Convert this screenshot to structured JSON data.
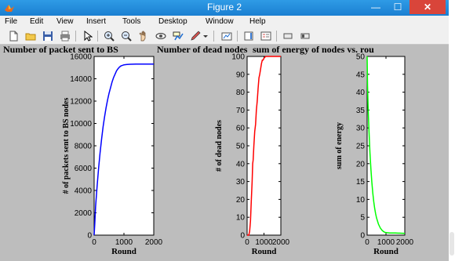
{
  "window": {
    "title": "Figure 2",
    "cropped_title_above": "energy",
    "minimize_glyph": "—",
    "maximize_glyph": "☐",
    "close_glyph": "✕"
  },
  "menu": [
    "File",
    "Edit",
    "View",
    "Insert",
    "Tools",
    "Desktop",
    "Window",
    "Help"
  ],
  "toolbar_icons": [
    "new-figure-icon",
    "open-file-icon",
    "save-icon",
    "print-icon",
    "pointer-icon",
    "zoom-in-icon",
    "zoom-out-icon",
    "pan-icon",
    "rotate-3d-icon",
    "data-cursor-icon",
    "brush-icon",
    "dropdown-arrow-icon",
    "link-plot-icon",
    "colorbar-icon",
    "legend-icon",
    "hide-plot-tools-icon",
    "show-plot-tools-icon"
  ],
  "colors": {
    "background": "#bdbdbd",
    "blue": "#0000ff",
    "red": "#ff0000",
    "green": "#00ff00"
  },
  "chart_data": [
    {
      "type": "line",
      "title": "Number of packet sent to BS",
      "xlabel": "Round",
      "ylabel": "# of packets sent to BS nodes",
      "xlim": [
        0,
        2000
      ],
      "ylim": [
        0,
        16000
      ],
      "xticks": [
        0,
        1000,
        2000
      ],
      "yticks": [
        0,
        2000,
        4000,
        6000,
        8000,
        10000,
        12000,
        14000,
        16000
      ],
      "grid": false,
      "color": "#0000ff",
      "x": [
        0,
        20,
        50,
        100,
        150,
        200,
        250,
        300,
        350,
        400,
        450,
        500,
        550,
        600,
        650,
        700,
        750,
        800,
        850,
        900,
        950,
        1000,
        1100,
        1200,
        1400,
        1600,
        1800,
        2000
      ],
      "y": [
        0,
        1000,
        2600,
        4400,
        6000,
        7400,
        8600,
        9700,
        10600,
        11400,
        12100,
        12700,
        13200,
        13700,
        14100,
        14400,
        14700,
        14900,
        15050,
        15150,
        15200,
        15250,
        15280,
        15300,
        15310,
        15320,
        15320,
        15320
      ]
    },
    {
      "type": "line",
      "title": "Number of dead nodes",
      "xlabel": "Round",
      "ylabel": "# of dead nodes",
      "xlim": [
        0,
        2000
      ],
      "ylim": [
        0,
        100
      ],
      "xticks": [
        0,
        1000,
        2000
      ],
      "yticks": [
        0,
        10,
        20,
        30,
        40,
        50,
        60,
        70,
        80,
        90,
        100
      ],
      "grid": false,
      "color": "#ff0000",
      "x": [
        0,
        100,
        150,
        200,
        250,
        300,
        330,
        360,
        400,
        450,
        500,
        550,
        600,
        650,
        700,
        750,
        800,
        850,
        900,
        950,
        1000,
        1100,
        1500,
        2000
      ],
      "y": [
        0,
        0,
        2,
        8,
        20,
        30,
        40,
        42,
        50,
        58,
        62,
        70,
        75,
        82,
        88,
        90,
        93,
        96,
        98,
        98,
        99,
        100,
        100,
        100
      ]
    },
    {
      "type": "line",
      "title": "sum of energy of nodes vs. rou",
      "xlabel": "Round",
      "ylabel": "sum of energy",
      "xlim": [
        0,
        2000
      ],
      "ylim": [
        0,
        50
      ],
      "xticks": [
        0,
        1000,
        2000
      ],
      "yticks": [
        0,
        5,
        10,
        15,
        20,
        25,
        30,
        35,
        40,
        45,
        50
      ],
      "grid": false,
      "color": "#00ff00",
      "x": [
        0,
        20,
        50,
        100,
        150,
        200,
        250,
        300,
        350,
        400,
        450,
        500,
        600,
        700,
        800,
        900,
        1000,
        1200,
        1500,
        2000
      ],
      "y": [
        50,
        42,
        36,
        29,
        23,
        18.5,
        14.8,
        11.8,
        9.4,
        7.5,
        6.0,
        4.8,
        3.1,
        2.0,
        1.3,
        0.9,
        0.7,
        0.6,
        0.6,
        0.5
      ]
    }
  ]
}
